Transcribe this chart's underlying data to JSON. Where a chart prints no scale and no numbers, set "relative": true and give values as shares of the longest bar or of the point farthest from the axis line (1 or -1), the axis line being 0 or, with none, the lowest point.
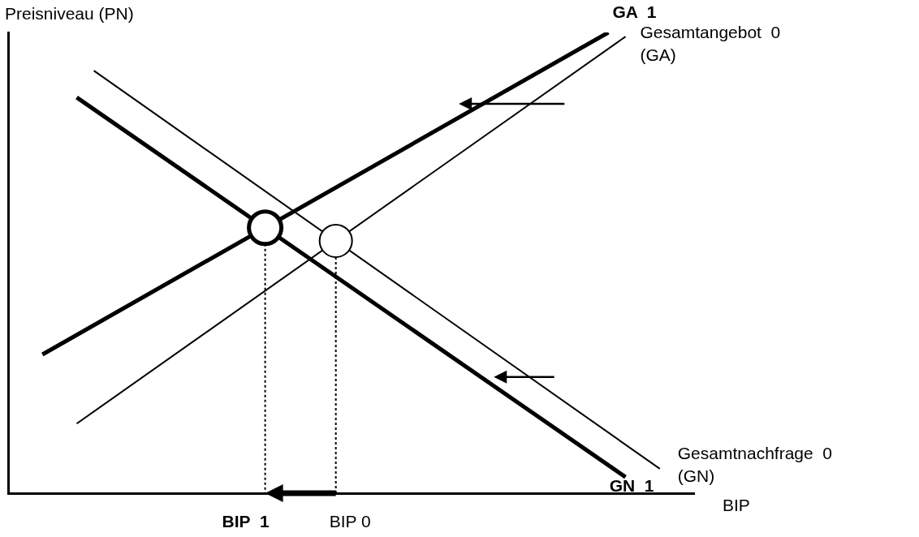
{
  "chart_data": {
    "type": "line",
    "relative": true,
    "tick_labels": false,
    "grid": false,
    "legend": false,
    "xlabel": "BIP",
    "ylabel": "Preisniveau (PN)",
    "categories": [
      null,
      null,
      null,
      null,
      null,
      null,
      null,
      null,
      null,
      null,
      null,
      null,
      null,
      null,
      null,
      null,
      null,
      null,
      null,
      null,
      null,
      null,
      null,
      null,
      null,
      null,
      null,
      null,
      null,
      null,
      null,
      null,
      null,
      null,
      null,
      null,
      null,
      null,
      null,
      null,
      null
    ],
    "series": [
      {
        "name": "GA  1",
        "color": "#000000",
        "values": [
          null,
          null,
          0.301,
          null,
          null,
          null,
          null,
          null,
          null,
          null,
          null,
          null,
          null,
          null,
          null,
          null,
          null,
          null,
          null,
          null,
          null,
          null,
          null,
          null,
          null,
          null,
          null,
          null,
          null,
          null,
          null,
          null,
          null,
          null,
          null,
          1,
          null,
          null,
          null,
          null,
          null
        ]
      },
      {
        "name": "Gesamtangebot  0\n(GA)",
        "color": "#000000",
        "values": [
          null,
          null,
          null,
          null,
          0.151,
          null,
          null,
          null,
          null,
          null,
          null,
          null,
          null,
          null,
          null,
          null,
          null,
          null,
          null,
          null,
          null,
          null,
          null,
          null,
          null,
          null,
          null,
          null,
          null,
          null,
          null,
          null,
          null,
          null,
          null,
          null,
          0.991,
          null,
          null,
          null,
          null
        ]
      },
      {
        "name": "Gesamtnachfrage  0\n(GN)",
        "color": "#000000",
        "values": [
          null,
          null,
          null,
          null,
          null,
          0.917,
          null,
          null,
          null,
          null,
          null,
          null,
          null,
          null,
          null,
          null,
          null,
          null,
          null,
          null,
          null,
          null,
          null,
          null,
          null,
          null,
          null,
          null,
          null,
          null,
          null,
          null,
          null,
          null,
          null,
          null,
          null,
          null,
          0.053,
          null,
          null
        ]
      },
      {
        "name": "GN  1",
        "color": "#000000",
        "values": [
          null,
          null,
          null,
          null,
          0.859,
          null,
          null,
          null,
          null,
          null,
          null,
          null,
          null,
          null,
          null,
          null,
          null,
          null,
          null,
          null,
          null,
          null,
          null,
          null,
          null,
          null,
          null,
          null,
          null,
          null,
          null,
          null,
          null,
          null,
          null,
          null,
          0.035,
          null,
          null,
          null,
          null
        ]
      }
    ],
    "annotations": [
      "BIP  1",
      "BIP 0"
    ]
  }
}
